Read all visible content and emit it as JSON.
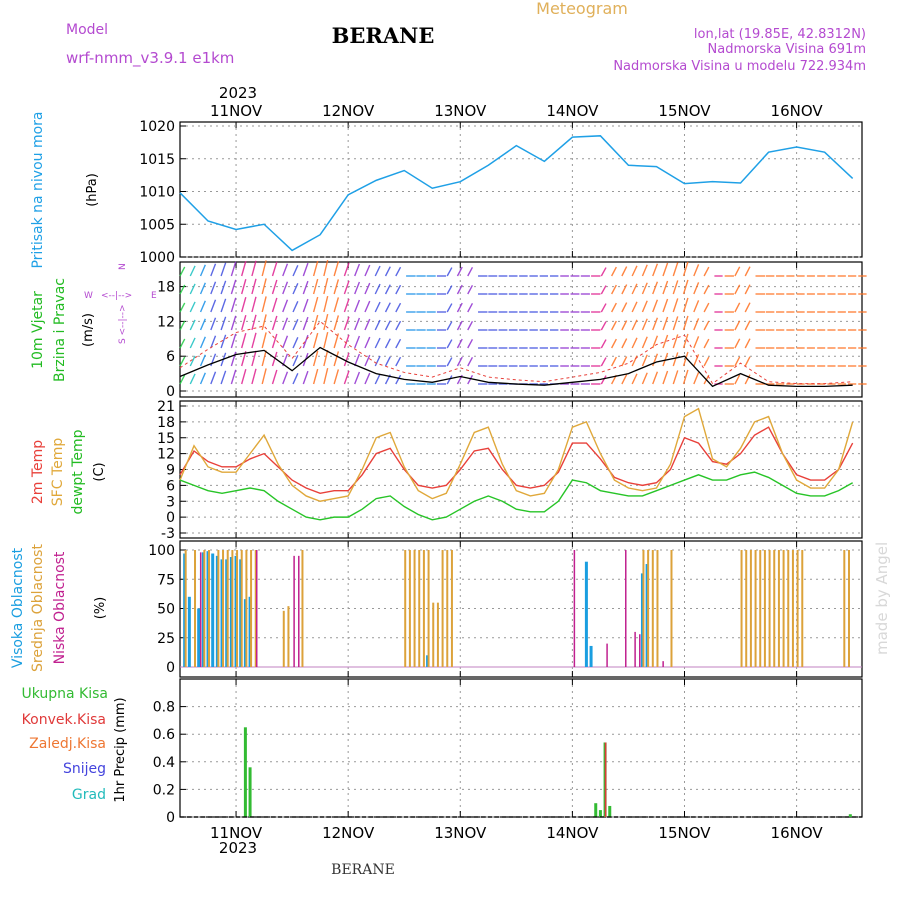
{
  "header": {
    "model_label": "Model",
    "model_name": "wrf-nmm_v3.9.1 e1km",
    "station": "BERANE",
    "product": "Meteogram",
    "lonlat": "lon,lat (19.85E, 42.8312N)",
    "elevation": "Nadmorska Visina 691m",
    "model_elevation": "Nadmorska Visina u modelu 722.934m",
    "watermark": "made by Angel",
    "footer_station": "BERANE"
  },
  "time_axis": {
    "year": "2023",
    "days": [
      "11NOV",
      "12NOV",
      "13NOV",
      "14NOV",
      "15NOV",
      "16NOV"
    ]
  },
  "colors": {
    "pressure": "#1fa0e6",
    "temp2m": "#e8403a",
    "sfc_temp": "#e0a83a",
    "dewpoint": "#27c427",
    "high_cloud": "#1a9ee0",
    "mid_cloud": "#dca23a",
    "low_cloud": "#c0208f",
    "precip_total": "#33bb33",
    "precip_conv": "#e03a3a",
    "precip_frozen": "#ee7733",
    "precip_snow": "#4444dd",
    "precip_graupel": "#22bbbb",
    "title_purple": "#b44ad0"
  },
  "chart_data": [
    {
      "type": "line",
      "panel": "pressure",
      "ylabel_left": "Pritisak na nivou mora",
      "unit": "(hPa)",
      "ylim": [
        1000,
        1020
      ],
      "yticks": [
        "1000",
        "1005",
        "1010",
        "1015",
        "1020"
      ],
      "grid": true,
      "x_hours": [
        0,
        6,
        12,
        18,
        24,
        30,
        36,
        42,
        48,
        54,
        60,
        66,
        72,
        78,
        84,
        90,
        96,
        102,
        108,
        114,
        120,
        126,
        132,
        138,
        144
      ],
      "series": [
        {
          "values": [
            1009.8,
            1005.5,
            1004.2,
            1005.0,
            1001.0,
            1003.4,
            1009.5,
            1011.7,
            1013.2,
            1010.5,
            1011.5,
            1014.0,
            1017.0,
            1014.6,
            1018.3,
            1018.5,
            1014.0,
            1013.8,
            1011.2,
            1011.5,
            1011.3,
            1016.0,
            1016.8,
            1016.0,
            1012.0
          ]
        }
      ]
    },
    {
      "type": "line",
      "panel": "wind",
      "ylabel_left": "10m Vjetar",
      "ylabel_left2": "Brzina i Pravac",
      "unit": "(m/s)",
      "legend_compass": {
        "north": "N",
        "south": "S",
        "west": "W",
        "east": "E",
        "arrow_h": "<--|-->",
        "arrow_v": "<--|-->"
      },
      "ylim": [
        0,
        20
      ],
      "yticks": [
        "0",
        "6",
        "12",
        "18"
      ],
      "grid": true,
      "x_hours": [
        0,
        6,
        12,
        18,
        24,
        30,
        36,
        42,
        48,
        54,
        60,
        66,
        72,
        78,
        84,
        90,
        96,
        102,
        108,
        114,
        120,
        126,
        132,
        138,
        144
      ],
      "series": [
        {
          "values": [
            2.5,
            4.5,
            6.3,
            7.0,
            3.5,
            7.5,
            5.0,
            3.0,
            2.0,
            1.5,
            2.5,
            1.5,
            1.2,
            1.0,
            1.5,
            2.0,
            3.0,
            5.0,
            6.0,
            0.8,
            3.0,
            1.0,
            0.8,
            0.8,
            1.0
          ]
        }
      ]
    },
    {
      "type": "line",
      "panel": "temperature",
      "ylabel_left": "2m Temp",
      "ylabel_left2": "SFC Temp",
      "ylabel_left3": "dewpt Temp",
      "unit": "(C)",
      "ylim": [
        -3,
        21
      ],
      "yticks": [
        "-3",
        "0",
        "3",
        "6",
        "9",
        "12",
        "15",
        "18",
        "21"
      ],
      "grid": true,
      "x_hours": [
        0,
        3,
        6,
        9,
        12,
        15,
        18,
        21,
        24,
        27,
        30,
        33,
        36,
        39,
        42,
        45,
        48,
        51,
        54,
        57,
        60,
        63,
        66,
        69,
        72,
        75,
        78,
        81,
        84,
        87,
        90,
        93,
        96,
        99,
        102,
        105,
        108,
        111,
        114,
        117,
        120,
        123,
        126,
        129,
        132,
        135,
        138,
        141,
        144
      ],
      "series": [
        {
          "name": "2m Temp",
          "values": [
            8,
            12.5,
            10.5,
            9.5,
            9.5,
            11,
            12,
            9.5,
            7,
            5.5,
            4.5,
            5,
            5,
            8,
            12,
            13,
            9,
            6,
            5.5,
            6,
            9,
            12.5,
            13,
            9,
            6,
            5.5,
            6,
            8.5,
            14,
            14,
            11,
            7.5,
            6.5,
            6,
            6.5,
            9,
            15,
            14,
            10.5,
            10,
            12,
            15.5,
            17,
            12,
            8,
            7,
            7,
            9,
            14
          ]
        },
        {
          "name": "SFC Temp",
          "values": [
            7,
            13.5,
            9.5,
            8.5,
            8.5,
            12,
            15.5,
            10,
            6,
            4,
            3,
            3.5,
            4,
            9,
            15,
            16,
            9.5,
            5,
            3.5,
            4.5,
            10,
            16,
            17,
            10,
            5,
            4,
            4.5,
            9,
            17,
            18,
            12,
            7,
            5.5,
            5,
            5.5,
            10,
            19,
            20.5,
            11,
            9.5,
            13,
            18,
            19,
            12,
            7,
            5.5,
            5.5,
            9,
            18
          ]
        },
        {
          "name": "dewpt Temp",
          "values": [
            7,
            6,
            5,
            4.5,
            5,
            5.5,
            5,
            3,
            1.5,
            0,
            -0.5,
            0,
            0,
            1.5,
            3.5,
            4,
            2,
            0.5,
            -0.5,
            0,
            1.5,
            3,
            4,
            3,
            1.5,
            1,
            1,
            3,
            7,
            6.5,
            5,
            4.5,
            4,
            4,
            5,
            6,
            7,
            8,
            7,
            7,
            8,
            8.5,
            7.5,
            6,
            4.5,
            4,
            4,
            5,
            6.5
          ]
        }
      ]
    },
    {
      "type": "bar",
      "panel": "cloud",
      "ylabel_left": "Visoka Oblacnost",
      "ylabel_left2": "Srednja Oblacnost",
      "ylabel_left3": "Niska Oblacnost",
      "unit": "(%)",
      "ylim": [
        0,
        100
      ],
      "yticks": [
        "0",
        "25",
        "50",
        "75",
        "100"
      ],
      "grid": true,
      "series": [
        {
          "name": "Visoka Oblacnost",
          "x_hours": [
            1,
            2,
            4,
            5,
            6,
            7,
            8,
            9,
            10,
            11,
            12,
            13,
            14,
            15,
            53,
            87,
            88,
            99,
            100
          ],
          "values": [
            97,
            60,
            50,
            98,
            99,
            97,
            95,
            92,
            92,
            94,
            95,
            92,
            58,
            60,
            10,
            90,
            18,
            80,
            88
          ]
        },
        {
          "name": "Srednja Oblacnost",
          "x_hours": [
            1,
            3,
            5,
            6,
            8,
            9,
            10,
            11,
            12,
            13,
            14,
            15,
            16,
            22,
            23,
            26,
            48,
            49,
            50,
            51,
            52,
            53,
            54,
            55,
            56,
            57,
            58,
            99,
            100,
            101,
            102,
            105,
            120,
            121,
            122,
            123,
            124,
            125,
            126,
            127,
            128,
            129,
            130,
            131,
            132,
            133,
            142,
            143
          ],
          "values": [
            100,
            100,
            100,
            100,
            100,
            100,
            100,
            100,
            100,
            100,
            100,
            100,
            100,
            48,
            52,
            100,
            100,
            100,
            100,
            100,
            100,
            100,
            55,
            55,
            100,
            100,
            100,
            100,
            100,
            100,
            100,
            100,
            100,
            100,
            100,
            100,
            100,
            100,
            100,
            100,
            100,
            100,
            100,
            100,
            100,
            100,
            100,
            100
          ]
        },
        {
          "name": "Niska Oblacnost",
          "x_hours": [
            4,
            16,
            24,
            25,
            84,
            91,
            95,
            97,
            98,
            103
          ],
          "values": [
            98,
            100,
            95,
            95,
            100,
            20,
            100,
            30,
            28,
            5
          ]
        }
      ]
    },
    {
      "type": "bar",
      "panel": "precip",
      "ylabel_left": "1hr Precip",
      "unit": "(mm)",
      "legend": [
        "Ukupna Kisa",
        "Konvek.Kisa",
        "Zaledj.Kisa",
        "Snijeg",
        "Grad"
      ],
      "ylim": [
        0,
        1.0
      ],
      "yticks": [
        "0",
        "0.2",
        "0.4",
        "0.6",
        "0.8"
      ],
      "grid": true,
      "series": [
        {
          "name": "Ukupna Kisa",
          "x_hours": [
            14,
            15,
            89,
            90,
            91,
            92,
            143.5
          ],
          "values": [
            0.65,
            0.36,
            0.1,
            0.05,
            0.54,
            0.08,
            0.02
          ]
        },
        {
          "name": "Konvek.Kisa",
          "x_hours": [
            91
          ],
          "values": [
            0.54
          ]
        }
      ]
    }
  ]
}
